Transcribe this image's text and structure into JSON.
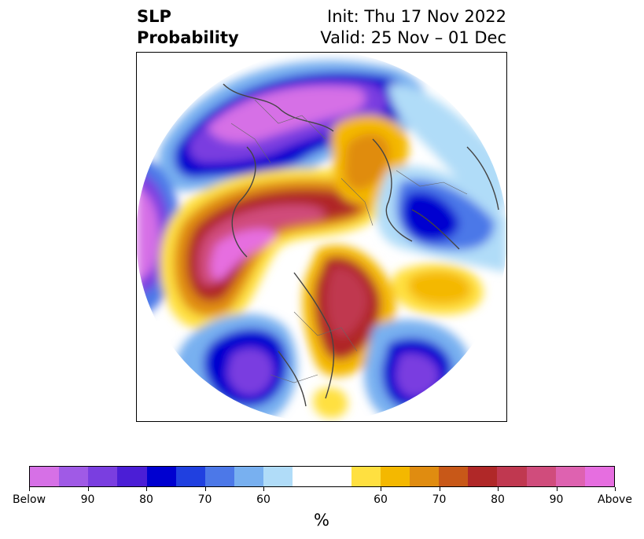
{
  "title": {
    "line1_left": "SLP",
    "line2_left": "Probability",
    "line1_right": "Init: Thu 17 Nov 2022",
    "line2_right": "Valid: 25 Nov – 01 Dec"
  },
  "colorbar": {
    "unit": "%",
    "colors": [
      "#d670e6",
      "#a05ae6",
      "#7a3ee0",
      "#4b1ed6",
      "#0000d0",
      "#2040e0",
      "#4c78e8",
      "#78b0f0",
      "#b0dcf8",
      "#ffffff",
      "#ffe040",
      "#f4b800",
      "#e08c10",
      "#c85818",
      "#b02828",
      "#c03850",
      "#d04c7c",
      "#de62b0",
      "#e66ee0"
    ],
    "ticks": [
      "Below",
      "90",
      "80",
      "70",
      "60",
      "60",
      "70",
      "80",
      "90",
      "Above"
    ]
  },
  "legend_colors": {
    "below": "#d670e6",
    "above": "#e66ee0",
    "neutral": "#ffffff"
  }
}
